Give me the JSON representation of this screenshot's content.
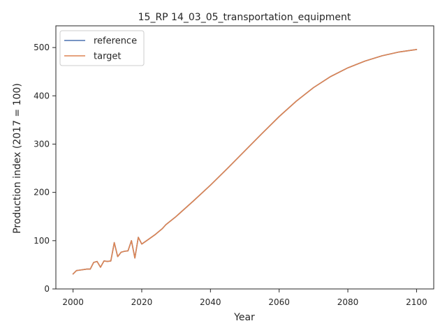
{
  "chart_data": {
    "type": "line",
    "title": "15_RP 14_03_05_transportation_equipment",
    "xlabel": "Year",
    "ylabel": "Production index (2017 = 100)",
    "xlim": [
      1995,
      2105
    ],
    "ylim": [
      0,
      545
    ],
    "xticks": [
      2000,
      2020,
      2040,
      2060,
      2080,
      2100
    ],
    "yticks": [
      0,
      100,
      200,
      300,
      400,
      500
    ],
    "grid": false,
    "legend_position": "upper-left",
    "x": [
      2000,
      2001,
      2002,
      2003,
      2004,
      2005,
      2006,
      2007,
      2008,
      2009,
      2010,
      2011,
      2012,
      2013,
      2014,
      2015,
      2016,
      2017,
      2018,
      2019,
      2020,
      2022,
      2024,
      2026,
      2027,
      2030,
      2035,
      2040,
      2045,
      2050,
      2055,
      2060,
      2065,
      2070,
      2075,
      2080,
      2085,
      2090,
      2095,
      2100
    ],
    "series": [
      {
        "name": "reference",
        "color": "#4c72b0",
        "values": [
          31,
          38,
          39,
          40,
          41,
          41,
          55,
          57,
          45,
          58,
          57,
          58,
          96,
          67,
          76,
          78,
          79,
          100,
          64,
          107,
          93,
          103,
          113,
          125,
          133,
          150,
          182,
          215,
          250,
          286,
          322,
          357,
          389,
          417,
          440,
          458,
          472,
          483,
          491,
          496
        ]
      },
      {
        "name": "target",
        "color": "#dd8452",
        "values": [
          31,
          38,
          39,
          40,
          41,
          41,
          55,
          57,
          45,
          58,
          57,
          58,
          96,
          67,
          76,
          78,
          79,
          100,
          64,
          107,
          93,
          103,
          113,
          125,
          133,
          150,
          182,
          215,
          250,
          286,
          322,
          357,
          389,
          417,
          440,
          458,
          472,
          483,
          491,
          496
        ]
      }
    ]
  }
}
